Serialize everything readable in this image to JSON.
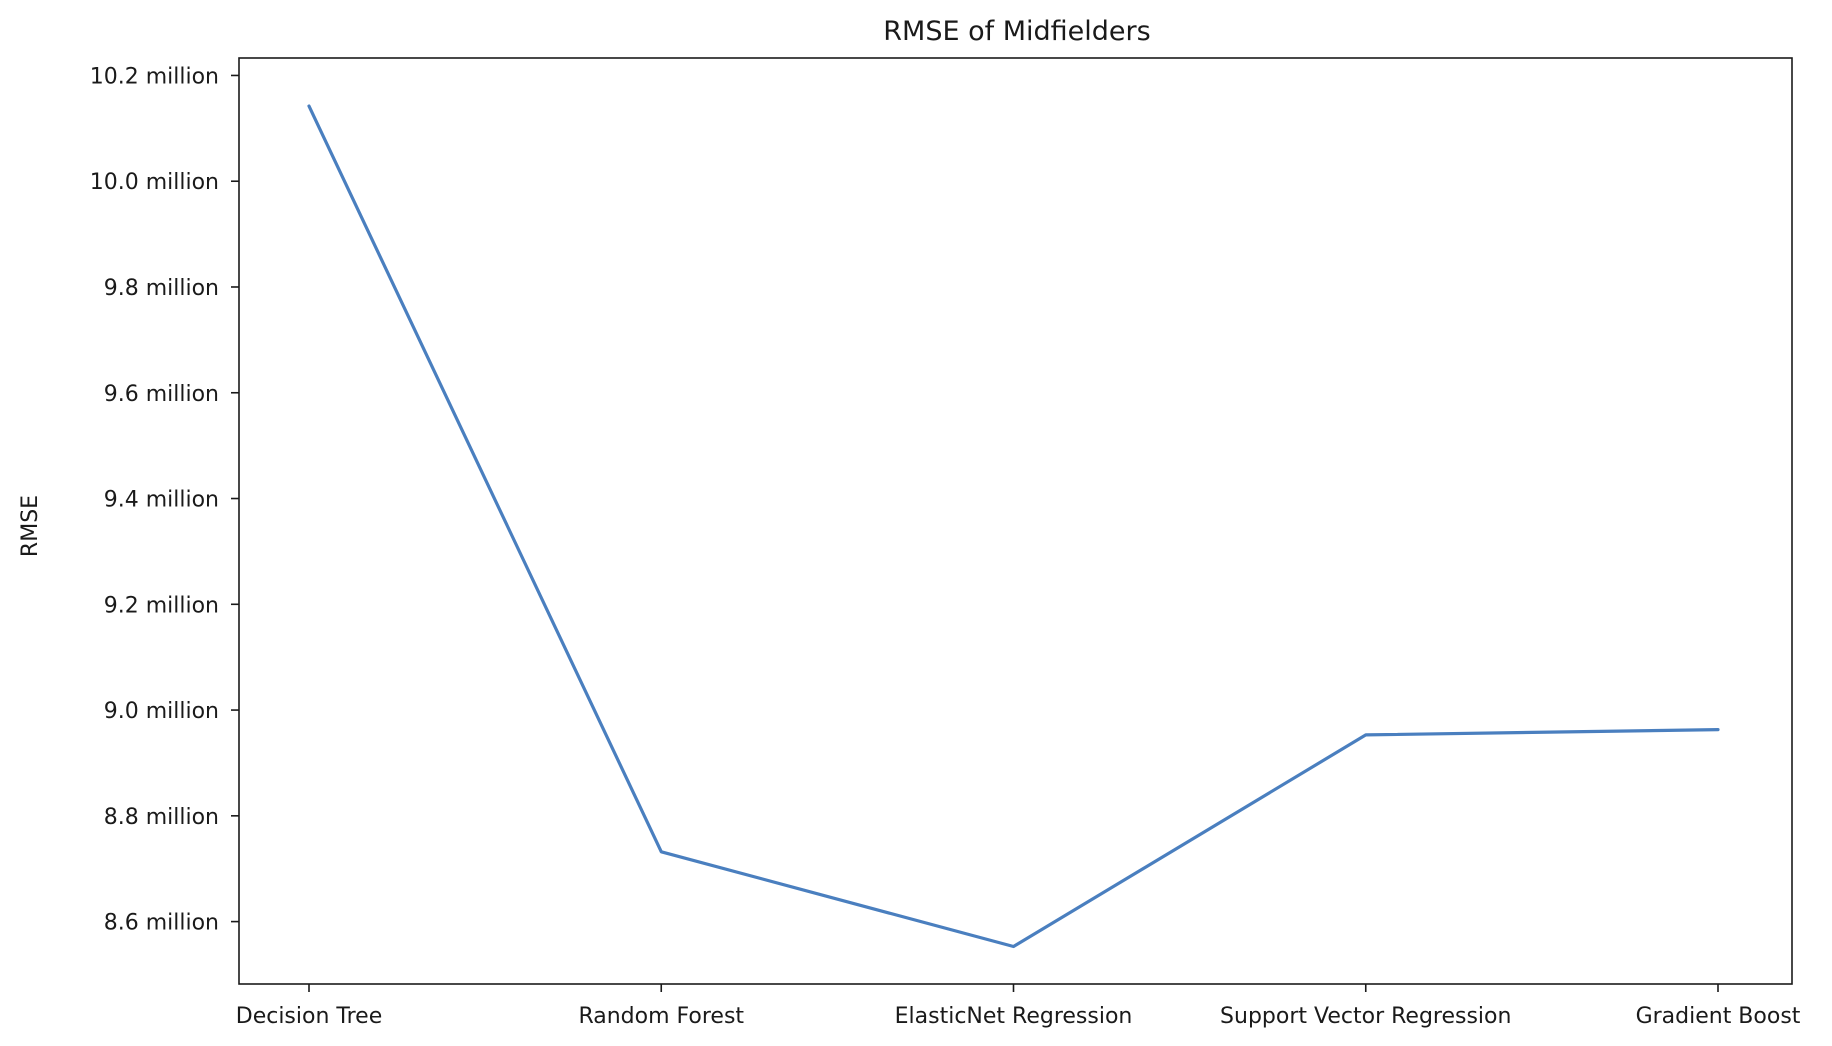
{
  "chart_data": {
    "type": "line",
    "title": "RMSE of Midfielders",
    "xlabel": "",
    "ylabel": "RMSE",
    "categories": [
      "Decision Tree",
      "Random Forest",
      "ElasticNet Regression",
      "Support Vector Regression",
      "Gradient Boost"
    ],
    "series": [
      {
        "values": [
          10.142,
          8.732,
          8.553,
          8.953,
          8.963
        ]
      }
    ],
    "value_unit": "million",
    "yticks": [
      8.6,
      8.8,
      9.0,
      9.2,
      9.4,
      9.6,
      9.8,
      10.0,
      10.2
    ],
    "ytick_labels": [
      "8.6 million",
      "8.8 million",
      "9.0 million",
      "9.2 million",
      "9.4 million",
      "9.6 million",
      "9.8 million",
      "10.0 million",
      "10.2 million"
    ],
    "ylim": [
      8.482,
      10.233
    ],
    "grid": false,
    "line_color": "#4a7fbf"
  }
}
